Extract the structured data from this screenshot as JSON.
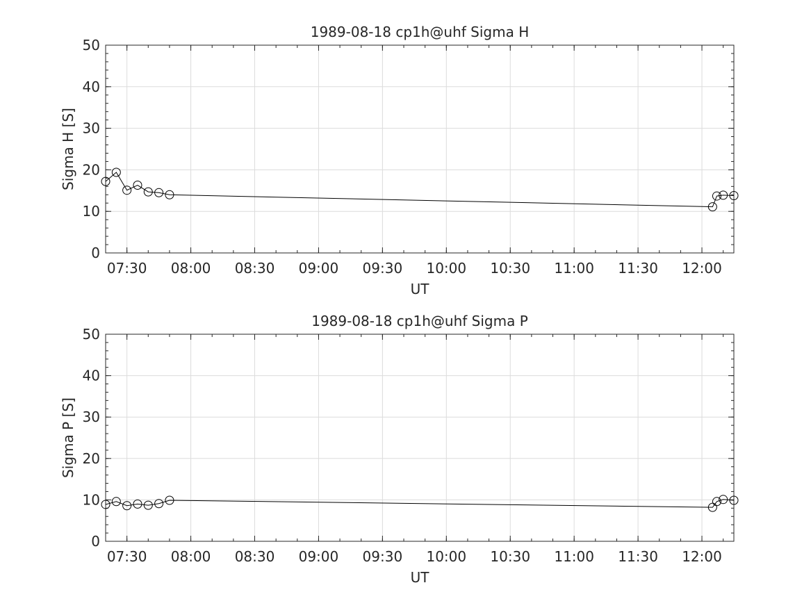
{
  "chart_data": [
    {
      "type": "line",
      "title": "1989-08-18  cp1h@uhf Sigma H",
      "xlabel": "UT",
      "ylabel": "Sigma H [S]",
      "xlim": [
        "07:20",
        "12:15"
      ],
      "ylim": [
        0,
        50
      ],
      "xticks": [
        "07:30",
        "08:00",
        "08:30",
        "09:00",
        "09:30",
        "10:00",
        "10:30",
        "11:00",
        "11:30",
        "12:00"
      ],
      "yticks": [
        0,
        10,
        20,
        30,
        40,
        50
      ],
      "grid": true,
      "series": [
        {
          "x": [
            "07:20",
            "07:25",
            "07:30",
            "07:35",
            "07:40",
            "07:45",
            "07:50",
            "12:05",
            "12:07",
            "12:10",
            "12:15"
          ],
          "values": [
            17.2,
            19.4,
            15.1,
            16.3,
            14.7,
            14.5,
            14.0,
            11.1,
            13.7,
            13.9,
            13.8
          ]
        }
      ]
    },
    {
      "type": "line",
      "title": "1989-08-18  cp1h@uhf Sigma P",
      "xlabel": "UT",
      "ylabel": "Sigma P [S]",
      "xlim": [
        "07:20",
        "12:15"
      ],
      "ylim": [
        0,
        50
      ],
      "xticks": [
        "07:30",
        "08:00",
        "08:30",
        "09:00",
        "09:30",
        "10:00",
        "10:30",
        "11:00",
        "11:30",
        "12:00"
      ],
      "yticks": [
        0,
        10,
        20,
        30,
        40,
        50
      ],
      "grid": true,
      "series": [
        {
          "x": [
            "07:20",
            "07:25",
            "07:30",
            "07:35",
            "07:40",
            "07:45",
            "07:50",
            "12:05",
            "12:07",
            "12:10",
            "12:15"
          ],
          "values": [
            8.9,
            9.6,
            8.6,
            9.0,
            8.7,
            9.1,
            9.9,
            8.2,
            9.6,
            10.1,
            9.9
          ]
        }
      ]
    }
  ]
}
